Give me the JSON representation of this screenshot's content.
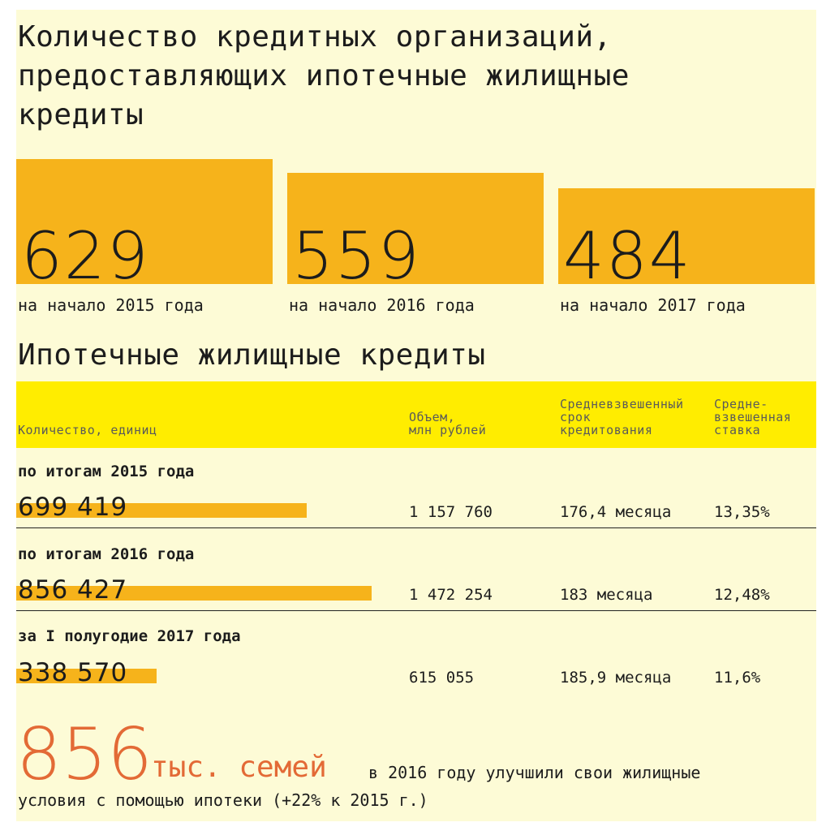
{
  "title": "Количество кредитных организаций, предоставляющих ипотечные жилищные кредиты",
  "top_stats": [
    {
      "value": "629",
      "label": "на начало 2015 года"
    },
    {
      "value": "559",
      "label": "на начало 2016 года"
    },
    {
      "value": "484",
      "label": "на начало 2017 года"
    }
  ],
  "section_title": "Ипотечные жилищные кредиты",
  "table_header": {
    "count": "Количество, единиц",
    "volume": "Объем,\nмлн рублей",
    "term": "Средневзвешенный\nсрок\nкредитования",
    "rate": "Средне-\nвзвешенная\nставка"
  },
  "rows": [
    {
      "label": "по итогам 2015 года",
      "count": "699 419",
      "volume": "1 157 760",
      "term": "176,4 месяца",
      "rate": "13,35%"
    },
    {
      "label": "по итогам 2016 года",
      "count": "856 427",
      "volume": "1 472 254",
      "term": "183 месяца",
      "rate": "12,48%"
    },
    {
      "label": "за I полугодие 2017 года",
      "count": "338 570",
      "volume": "615 055",
      "term": "185,9 месяца",
      "rate": "11,6%"
    }
  ],
  "footnote": {
    "big_number": "856",
    "big_unit": "тыс. семей",
    "text_line1": "в 2016 году улучшили свои жилищные",
    "text_line2": "условия с помощью ипотеки (+22% к 2015 г.)"
  },
  "colors": {
    "background": "#fdfbd6",
    "bar": "#f6b31b",
    "header": "#ffed00",
    "accent": "#e36a36"
  },
  "chart_data": [
    {
      "type": "bar",
      "title": "Количество кредитных организаций, предоставляющих ипотечные жилищные кредиты",
      "categories": [
        "на начало 2015 года",
        "на начало 2016 года",
        "на начало 2017 года"
      ],
      "values": [
        629,
        559,
        484
      ]
    },
    {
      "type": "bar",
      "title": "Ипотечные жилищные кредиты",
      "categories": [
        "по итогам 2015 года",
        "по итогам 2016 года",
        "за I полугодие 2017 года"
      ],
      "series": [
        {
          "name": "Количество, единиц",
          "values": [
            699419,
            856427,
            338570
          ]
        },
        {
          "name": "Объем, млн рублей",
          "values": [
            1157760,
            1472254,
            615055
          ]
        },
        {
          "name": "Средневзвешенный срок кредитования",
          "values": [
            176.4,
            183,
            185.9
          ]
        },
        {
          "name": "Средневзвешенная ставка",
          "values": [
            13.35,
            12.48,
            11.6
          ]
        }
      ]
    }
  ]
}
